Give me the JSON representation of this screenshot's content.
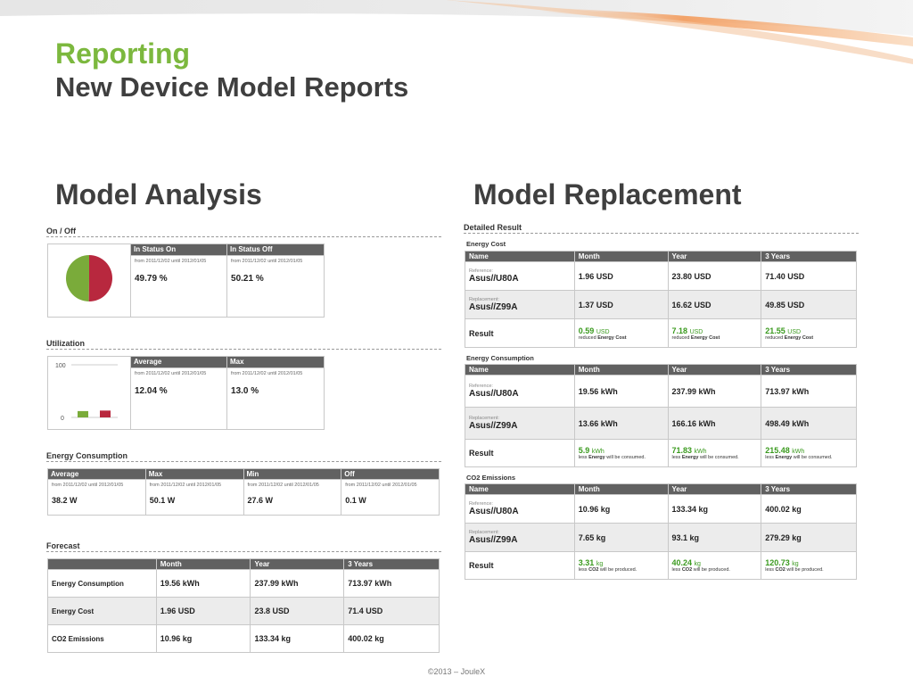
{
  "slide": {
    "title_main": "Reporting",
    "title_sub": "New Device Model Reports",
    "left_heading": "Model Analysis",
    "right_heading": "Model Replacement",
    "footer": "©2013 – JouleX"
  },
  "colors": {
    "accent_green": "#7cb83e",
    "pie_green": "#7aab3a",
    "pie_red": "#b8283e",
    "value_green": "#3a9a1e",
    "header_gray": "#616161"
  },
  "on_off": {
    "heading": "On / Off",
    "col1": "In Status On",
    "col2": "In Status Off",
    "range": "from 2011/12/02 until 2012/01/05",
    "val1": "49.79 %",
    "val2": "50.21 %",
    "pie_on_fraction": 0.4979
  },
  "utilization": {
    "heading": "Utilization",
    "col1": "Average",
    "col2": "Max",
    "range": "from 2011/12/02 until 2012/01/05",
    "val1": "12.04 %",
    "val2": "13.0 %",
    "axis_top": "100",
    "axis_bottom": "0",
    "bars": [
      12.04,
      13.0
    ]
  },
  "energy": {
    "heading": "Energy Consumption",
    "cols": [
      "Average",
      "Max",
      "Min",
      "Off"
    ],
    "range": "from 2011/12/02 until 2012/01/05",
    "vals": [
      "38.2 W",
      "50.1 W",
      "27.6 W",
      "0.1 W"
    ]
  },
  "forecast": {
    "heading": "Forecast",
    "cols": [
      "",
      "Month",
      "Year",
      "3 Years"
    ],
    "rows": [
      {
        "label": "Energy Consumption",
        "vals": [
          "19.56 kWh",
          "237.99 kWh",
          "713.97 kWh"
        ]
      },
      {
        "label": "Energy Cost",
        "vals": [
          "1.96 USD",
          "23.8 USD",
          "71.4 USD"
        ]
      },
      {
        "label": "CO2 Emissions",
        "vals": [
          "10.96 kg",
          "133.34 kg",
          "400.02 kg"
        ]
      }
    ]
  },
  "detailed": {
    "heading": "Detailed Result",
    "cols": [
      "Name",
      "Month",
      "Year",
      "3 Years"
    ],
    "ref_tag": "Reference:",
    "rep_tag": "Replacement:",
    "ref_device": "Asus//U80A",
    "rep_device": "Asus//Z99A",
    "result_label": "Result",
    "cost": {
      "heading": "Energy Cost",
      "ref": [
        "1.96 USD",
        "23.80 USD",
        "71.40 USD"
      ],
      "rep": [
        "1.37 USD",
        "16.62 USD",
        "49.85 USD"
      ],
      "res_vals": [
        "0.59",
        "7.18",
        "21.55"
      ],
      "res_unit": "USD",
      "note_pre": "reduced ",
      "note_bold": "Energy Cost",
      "note_post": ""
    },
    "consumption": {
      "heading": "Energy Consumption",
      "ref": [
        "19.56 kWh",
        "237.99 kWh",
        "713.97 kWh"
      ],
      "rep": [
        "13.66 kWh",
        "166.16 kWh",
        "498.49 kWh"
      ],
      "res_vals": [
        "5.9",
        "71.83",
        "215.48"
      ],
      "res_unit": "kWh",
      "note_pre": "less ",
      "note_bold": "Energy",
      "note_post": " will be consumed."
    },
    "co2": {
      "heading": "CO2 Emissions",
      "ref": [
        "10.96 kg",
        "133.34 kg",
        "400.02 kg"
      ],
      "rep": [
        "7.65 kg",
        "93.1 kg",
        "279.29 kg"
      ],
      "res_vals": [
        "3.31",
        "40.24",
        "120.73"
      ],
      "res_unit": "kg",
      "note_pre": "less ",
      "note_bold": "CO2",
      "note_post": " will be produced."
    }
  }
}
